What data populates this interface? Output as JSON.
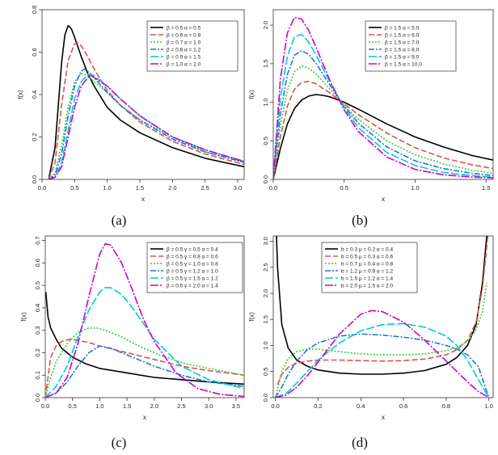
{
  "chart_data": [
    {
      "type": "line",
      "panel_label": "(a)",
      "xlabel": "x",
      "ylabel": "f(x)",
      "xlim": [
        0,
        3.1
      ],
      "ylim": [
        0,
        0.8
      ],
      "xticks": [
        0.0,
        0.5,
        1.0,
        1.5,
        2.0,
        2.5,
        3.0
      ],
      "xtick_labels": [
        "0.0",
        "0.5",
        "1.0",
        "1.5",
        "2.0",
        "2.5",
        "3.0"
      ],
      "yticks": [
        0.0,
        0.2,
        0.4,
        0.6,
        0.8
      ],
      "ytick_labels": [
        "0.0",
        "0.2",
        "0.4",
        "0.6",
        "0.8"
      ],
      "legend_position": "top-right",
      "series": [
        {
          "name": "β = 0.5  α = 0.5",
          "color": "#000000",
          "dash": "",
          "x": [
            0.1,
            0.2,
            0.3,
            0.35,
            0.4,
            0.45,
            0.5,
            0.6,
            0.7,
            0.8,
            1.0,
            1.2,
            1.5,
            2.0,
            2.5,
            3.1
          ],
          "y": [
            0.0,
            0.15,
            0.55,
            0.68,
            0.725,
            0.71,
            0.67,
            0.58,
            0.5,
            0.44,
            0.34,
            0.28,
            0.22,
            0.15,
            0.1,
            0.06
          ]
        },
        {
          "name": "β = 0.6  α = 0.8",
          "color": "#d9534f",
          "dash": "7,3",
          "x": [
            0.1,
            0.2,
            0.3,
            0.4,
            0.5,
            0.55,
            0.6,
            0.7,
            0.8,
            1.0,
            1.2,
            1.5,
            2.0,
            2.5,
            3.1
          ],
          "y": [
            0.0,
            0.08,
            0.35,
            0.56,
            0.64,
            0.645,
            0.63,
            0.58,
            0.52,
            0.42,
            0.35,
            0.27,
            0.18,
            0.12,
            0.07
          ]
        },
        {
          "name": "β = 0.7  α = 1.0",
          "color": "#33cc33",
          "dash": "2,2",
          "x": [
            0.1,
            0.2,
            0.3,
            0.4,
            0.5,
            0.6,
            0.7,
            0.8,
            1.0,
            1.2,
            1.5,
            2.0,
            2.5,
            3.1
          ],
          "y": [
            0.0,
            0.03,
            0.16,
            0.34,
            0.46,
            0.5,
            0.49,
            0.46,
            0.41,
            0.35,
            0.28,
            0.2,
            0.13,
            0.08
          ]
        },
        {
          "name": "β = 0.8  α = 1.2",
          "color": "#1f77d9",
          "dash": "7,2,2,2",
          "x": [
            0.1,
            0.2,
            0.3,
            0.4,
            0.5,
            0.6,
            0.65,
            0.7,
            0.8,
            1.0,
            1.2,
            1.5,
            2.0,
            2.5,
            3.1
          ],
          "y": [
            0.0,
            0.02,
            0.12,
            0.3,
            0.44,
            0.51,
            0.52,
            0.51,
            0.48,
            0.41,
            0.35,
            0.28,
            0.19,
            0.13,
            0.08
          ]
        },
        {
          "name": "β = 0.9  α = 1.5",
          "color": "#00cccc",
          "dash": "10,3",
          "x": [
            0.1,
            0.2,
            0.3,
            0.4,
            0.5,
            0.6,
            0.7,
            0.8,
            1.0,
            1.2,
            1.5,
            2.0,
            2.5,
            3.1
          ],
          "y": [
            0.0,
            0.01,
            0.08,
            0.23,
            0.38,
            0.46,
            0.495,
            0.49,
            0.44,
            0.38,
            0.3,
            0.2,
            0.14,
            0.085
          ]
        },
        {
          "name": "β = 1.0  α = 2.0",
          "color": "#cc00cc",
          "dash": "10,2,2,2",
          "x": [
            0.1,
            0.2,
            0.3,
            0.4,
            0.5,
            0.6,
            0.7,
            0.75,
            0.8,
            1.0,
            1.2,
            1.5,
            2.0,
            2.5,
            3.1
          ],
          "y": [
            0.0,
            0.01,
            0.06,
            0.2,
            0.34,
            0.44,
            0.48,
            0.49,
            0.48,
            0.44,
            0.38,
            0.3,
            0.2,
            0.14,
            0.085
          ]
        }
      ]
    },
    {
      "type": "line",
      "panel_label": "(b)",
      "xlabel": "x",
      "ylabel": "f(x)",
      "xlim": [
        0,
        1.55
      ],
      "ylim": [
        0,
        2.2
      ],
      "xticks": [
        0.0,
        0.5,
        1.0,
        1.5
      ],
      "xtick_labels": [
        "0.0",
        "0.5",
        "1.0",
        "1.5"
      ],
      "yticks": [
        0.0,
        0.5,
        1.0,
        1.5,
        2.0
      ],
      "ytick_labels": [
        "0.0",
        "0.5",
        "1.0",
        "1.5",
        "2.0"
      ],
      "legend_position": "top-right",
      "series": [
        {
          "name": "β = 1.5  α = 5.0",
          "color": "#000000",
          "dash": "",
          "x": [
            0.0,
            0.05,
            0.1,
            0.15,
            0.2,
            0.25,
            0.3,
            0.35,
            0.4,
            0.5,
            0.6,
            0.8,
            1.0,
            1.2,
            1.4,
            1.55
          ],
          "y": [
            0.0,
            0.4,
            0.72,
            0.92,
            1.03,
            1.08,
            1.1,
            1.09,
            1.07,
            1.0,
            0.91,
            0.72,
            0.55,
            0.42,
            0.31,
            0.25
          ]
        },
        {
          "name": "β = 1.5  α = 6.0",
          "color": "#d9534f",
          "dash": "7,3",
          "x": [
            0.0,
            0.05,
            0.1,
            0.15,
            0.2,
            0.25,
            0.3,
            0.4,
            0.5,
            0.6,
            0.8,
            1.0,
            1.2,
            1.4,
            1.55
          ],
          "y": [
            0.0,
            0.55,
            0.95,
            1.17,
            1.26,
            1.27,
            1.24,
            1.12,
            0.98,
            0.84,
            0.6,
            0.41,
            0.28,
            0.19,
            0.14
          ]
        },
        {
          "name": "β = 1.5  α = 7.0",
          "color": "#33cc33",
          "dash": "2,2",
          "x": [
            0.0,
            0.05,
            0.1,
            0.15,
            0.2,
            0.25,
            0.3,
            0.4,
            0.5,
            0.6,
            0.8,
            1.0,
            1.2,
            1.4,
            1.55
          ],
          "y": [
            0.0,
            0.7,
            1.15,
            1.4,
            1.47,
            1.44,
            1.37,
            1.17,
            0.96,
            0.78,
            0.5,
            0.32,
            0.2,
            0.12,
            0.08
          ]
        },
        {
          "name": "β = 1.5  α = 8.0",
          "color": "#1f77d9",
          "dash": "7,2,2,2",
          "x": [
            0.0,
            0.05,
            0.1,
            0.15,
            0.2,
            0.25,
            0.3,
            0.4,
            0.5,
            0.6,
            0.8,
            1.0,
            1.2,
            1.4,
            1.55
          ],
          "y": [
            0.0,
            0.85,
            1.36,
            1.61,
            1.67,
            1.62,
            1.51,
            1.22,
            0.95,
            0.73,
            0.42,
            0.24,
            0.14,
            0.08,
            0.05
          ]
        },
        {
          "name": "β = 1.5  α = 9.0",
          "color": "#00cccc",
          "dash": "10,3",
          "x": [
            0.0,
            0.05,
            0.1,
            0.15,
            0.2,
            0.25,
            0.3,
            0.4,
            0.5,
            0.6,
            0.8,
            1.0,
            1.2,
            1.4,
            1.55
          ],
          "y": [
            0.0,
            1.05,
            1.6,
            1.85,
            1.88,
            1.78,
            1.62,
            1.26,
            0.93,
            0.67,
            0.35,
            0.18,
            0.09,
            0.05,
            0.03
          ]
        },
        {
          "name": "β = 1.5  α = 10.0",
          "color": "#cc00cc",
          "dash": "10,2,2,2",
          "x": [
            0.0,
            0.05,
            0.1,
            0.15,
            0.2,
            0.25,
            0.3,
            0.4,
            0.5,
            0.6,
            0.8,
            1.0,
            1.2,
            1.4,
            1.55
          ],
          "y": [
            0.0,
            1.3,
            1.9,
            2.1,
            2.08,
            1.93,
            1.72,
            1.28,
            0.9,
            0.62,
            0.29,
            0.13,
            0.06,
            0.03,
            0.02
          ]
        }
      ]
    },
    {
      "type": "line",
      "panel_label": "(c)",
      "xlabel": "x",
      "ylabel": "f(x)",
      "xlim": [
        0,
        3.65
      ],
      "ylim": [
        0,
        0.72
      ],
      "xticks": [
        0.0,
        0.5,
        1.0,
        1.5,
        2.0,
        2.5,
        3.0,
        3.5
      ],
      "xtick_labels": [
        "0.0",
        "0.5",
        "1.0",
        "1.5",
        "2.0",
        "2.5",
        "3.0",
        "3.5"
      ],
      "yticks": [
        0.0,
        0.1,
        0.2,
        0.3,
        0.4,
        0.5,
        0.6,
        0.7
      ],
      "ytick_labels": [
        "0.0",
        "0.1",
        "0.2",
        "0.3",
        "0.4",
        "0.5",
        "0.6",
        "0.7"
      ],
      "legend_position": "top-right",
      "series": [
        {
          "name": "β = 0.5  γ = 0.5  α = 0.4",
          "color": "#000000",
          "dash": "",
          "x": [
            0.01,
            0.05,
            0.1,
            0.2,
            0.3,
            0.5,
            0.75,
            1.0,
            1.5,
            2.0,
            2.5,
            3.0,
            3.65
          ],
          "y": [
            0.47,
            0.36,
            0.31,
            0.26,
            0.22,
            0.18,
            0.15,
            0.13,
            0.11,
            0.09,
            0.08,
            0.07,
            0.06
          ]
        },
        {
          "name": "β = 0.5  γ = 0.8  α = 0.6",
          "color": "#d9534f",
          "dash": "7,3",
          "x": [
            0.0,
            0.1,
            0.2,
            0.3,
            0.45,
            0.6,
            0.8,
            1.0,
            1.5,
            2.0,
            2.5,
            3.0,
            3.65
          ],
          "y": [
            0.0,
            0.18,
            0.23,
            0.25,
            0.26,
            0.255,
            0.245,
            0.23,
            0.2,
            0.17,
            0.14,
            0.12,
            0.1
          ]
        },
        {
          "name": "β = 0.5  γ = 1.0  α = 0.8",
          "color": "#33cc33",
          "dash": "2,2",
          "x": [
            0.0,
            0.1,
            0.2,
            0.4,
            0.6,
            0.8,
            0.95,
            1.1,
            1.4,
            1.8,
            2.2,
            2.6,
            3.0,
            3.65
          ],
          "y": [
            0.0,
            0.09,
            0.16,
            0.24,
            0.29,
            0.31,
            0.31,
            0.3,
            0.27,
            0.22,
            0.18,
            0.15,
            0.13,
            0.1
          ]
        },
        {
          "name": "β = 0.5  γ = 1.2  α = 1.0",
          "color": "#1f77d9",
          "dash": "7,2,2,2",
          "x": [
            0.0,
            0.2,
            0.4,
            0.6,
            0.8,
            1.0,
            1.2,
            1.4,
            1.7,
            2.0,
            2.5,
            3.0,
            3.65
          ],
          "y": [
            0.0,
            0.02,
            0.07,
            0.14,
            0.2,
            0.23,
            0.22,
            0.2,
            0.17,
            0.14,
            0.1,
            0.07,
            0.05
          ]
        },
        {
          "name": "β = 0.5  γ = 1.5  α = 1.2",
          "color": "#00cccc",
          "dash": "10,3",
          "x": [
            0.0,
            0.2,
            0.4,
            0.6,
            0.8,
            1.0,
            1.1,
            1.2,
            1.4,
            1.6,
            1.8,
            2.0,
            2.5,
            3.0,
            3.65
          ],
          "y": [
            0.0,
            0.05,
            0.14,
            0.27,
            0.39,
            0.47,
            0.49,
            0.49,
            0.46,
            0.4,
            0.33,
            0.26,
            0.14,
            0.08,
            0.04
          ]
        },
        {
          "name": "β = 0.5  γ = 2.0  α = 1.4",
          "color": "#cc00cc",
          "dash": "10,2,2,2",
          "x": [
            0.0,
            0.2,
            0.4,
            0.6,
            0.8,
            1.0,
            1.1,
            1.2,
            1.4,
            1.6,
            1.8,
            2.0,
            2.4,
            2.8,
            3.2,
            3.65
          ],
          "y": [
            0.0,
            0.02,
            0.09,
            0.24,
            0.45,
            0.64,
            0.685,
            0.68,
            0.6,
            0.48,
            0.35,
            0.25,
            0.11,
            0.04,
            0.015,
            0.005
          ]
        }
      ]
    },
    {
      "type": "line",
      "panel_label": "(d)",
      "xlabel": "x",
      "ylabel": "f(x)",
      "xlim": [
        -0.01,
        1.02
      ],
      "ylim": [
        0,
        3.1
      ],
      "xticks": [
        0.0,
        0.2,
        0.4,
        0.6,
        0.8,
        1.0
      ],
      "xtick_labels": [
        "0.0",
        "0.2",
        "0.4",
        "0.6",
        "0.8",
        "1.0"
      ],
      "yticks": [
        0.0,
        0.5,
        1.0,
        1.5,
        2.0,
        2.5,
        3.0
      ],
      "ytick_labels": [
        "0.0",
        "0.5",
        "1.0",
        "1.5",
        "2.0",
        "2.5",
        "3.0"
      ],
      "legend_position": "top-center",
      "series": [
        {
          "name": "b = 0.3  μ = 0.2  α = 0.4",
          "color": "#000000",
          "dash": "",
          "x": [
            0.005,
            0.01,
            0.03,
            0.06,
            0.1,
            0.15,
            0.2,
            0.3,
            0.4,
            0.5,
            0.6,
            0.7,
            0.8,
            0.85,
            0.9,
            0.94,
            0.97,
            0.99,
            0.995
          ],
          "y": [
            3.1,
            2.5,
            1.4,
            0.95,
            0.72,
            0.6,
            0.53,
            0.47,
            0.45,
            0.45,
            0.47,
            0.52,
            0.64,
            0.77,
            1.0,
            1.4,
            2.2,
            3.1,
            3.1
          ]
        },
        {
          "name": "b = 0.5  μ = 0.3  α = 0.6",
          "color": "#d9534f",
          "dash": "7,3",
          "x": [
            0.01,
            0.03,
            0.06,
            0.1,
            0.15,
            0.2,
            0.3,
            0.4,
            0.5,
            0.6,
            0.7,
            0.8,
            0.85,
            0.9,
            0.94,
            0.97,
            0.985,
            0.995
          ],
          "y": [
            0.25,
            0.45,
            0.58,
            0.66,
            0.7,
            0.72,
            0.72,
            0.71,
            0.7,
            0.71,
            0.74,
            0.82,
            0.92,
            1.1,
            1.45,
            2.1,
            2.7,
            3.1
          ]
        },
        {
          "name": "b = 0.7  μ = 0.4  α = 0.8",
          "color": "#33cc33",
          "dash": "2,2",
          "x": [
            0.0,
            0.03,
            0.06,
            0.1,
            0.15,
            0.2,
            0.3,
            0.4,
            0.5,
            0.6,
            0.7,
            0.8,
            0.85,
            0.9,
            0.94,
            0.97,
            0.99
          ],
          "y": [
            0.0,
            0.5,
            0.75,
            0.88,
            0.93,
            0.93,
            0.88,
            0.84,
            0.82,
            0.82,
            0.84,
            0.9,
            0.96,
            1.08,
            1.3,
            1.65,
            2.2
          ]
        },
        {
          "name": "b = 1.2  μ = 0.9  α = 1.2",
          "color": "#1f77d9",
          "dash": "7,2,2,2",
          "x": [
            0.0,
            0.03,
            0.06,
            0.1,
            0.15,
            0.2,
            0.3,
            0.4,
            0.5,
            0.6,
            0.7,
            0.8,
            0.85,
            0.9,
            0.95,
            1.0
          ],
          "y": [
            0.0,
            0.2,
            0.45,
            0.7,
            0.92,
            1.05,
            1.18,
            1.22,
            1.2,
            1.16,
            1.1,
            1.0,
            0.93,
            0.82,
            0.6,
            0.0
          ]
        },
        {
          "name": "b = 1.5  μ = 1.2  α = 1.4",
          "color": "#00cccc",
          "dash": "10,3",
          "x": [
            0.0,
            0.05,
            0.1,
            0.15,
            0.2,
            0.3,
            0.4,
            0.5,
            0.6,
            0.7,
            0.8,
            0.85,
            0.9,
            0.95,
            1.0
          ],
          "y": [
            0.0,
            0.08,
            0.28,
            0.5,
            0.72,
            1.05,
            1.28,
            1.4,
            1.42,
            1.35,
            1.18,
            1.0,
            0.72,
            0.35,
            0.0
          ]
        },
        {
          "name": "b = 2.0  μ = 1.5  α = 2.0",
          "color": "#cc00cc",
          "dash": "10,2,2,2",
          "x": [
            0.0,
            0.05,
            0.1,
            0.15,
            0.2,
            0.3,
            0.4,
            0.45,
            0.5,
            0.6,
            0.7,
            0.8,
            0.85,
            0.9,
            0.95,
            1.0
          ],
          "y": [
            0.0,
            0.05,
            0.2,
            0.42,
            0.68,
            1.22,
            1.6,
            1.67,
            1.65,
            1.45,
            1.1,
            0.7,
            0.5,
            0.3,
            0.12,
            0.0
          ]
        }
      ]
    }
  ]
}
